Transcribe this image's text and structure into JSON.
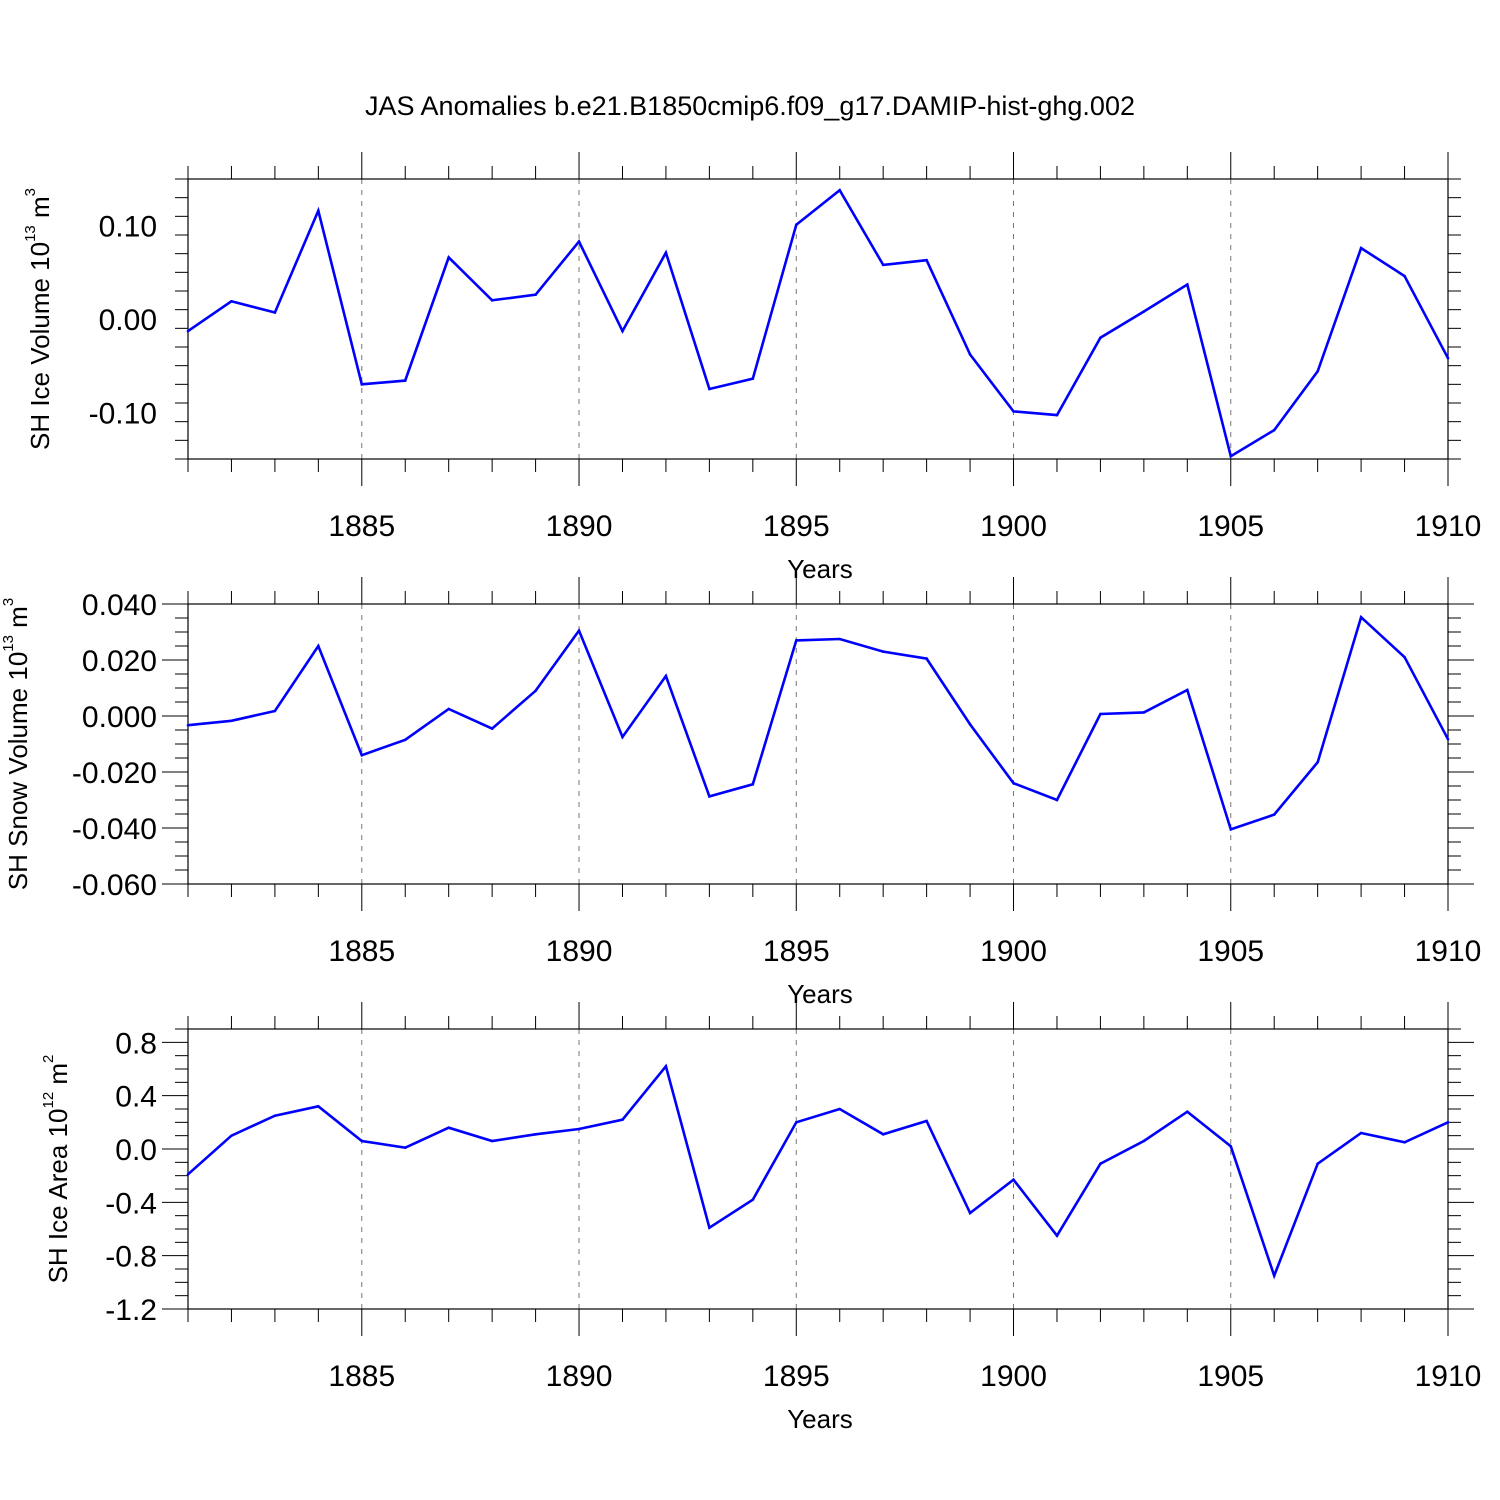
{
  "title": "JAS Anomalies b.e21.B1850cmip6.f09_g17.DAMIP-hist-ghg.002",
  "line_color": "#0000ff",
  "chart_data": [
    {
      "type": "line",
      "ylabel": {
        "text": "SH Ice Volume 10",
        "sup": "13",
        "unit": " m",
        "unit_sup": "3"
      },
      "xlabel": "Years",
      "xlim": [
        1881,
        1910
      ],
      "ylim": [
        -0.15,
        0.15
      ],
      "xticks": [
        1885,
        1890,
        1895,
        1900,
        1905,
        1910
      ],
      "xtick_labels": [
        "1885",
        "1890",
        "1895",
        "1900",
        "1905",
        "1910"
      ],
      "yticks": [
        -0.1,
        0.0,
        0.1
      ],
      "ytick_labels": [
        "-0.10",
        "0.00",
        "0.10"
      ],
      "ytick_minor_step": 0.02,
      "grid": "dashed vertical at major x ticks",
      "x": [
        1881,
        1882,
        1883,
        1884,
        1885,
        1886,
        1887,
        1888,
        1889,
        1890,
        1891,
        1892,
        1893,
        1894,
        1895,
        1896,
        1897,
        1898,
        1899,
        1900,
        1901,
        1902,
        1903,
        1904,
        1905,
        1906,
        1907,
        1908,
        1909,
        1910
      ],
      "y": [
        -0.013,
        0.019,
        0.007,
        0.116,
        -0.07,
        -0.066,
        0.066,
        0.02,
        0.026,
        0.083,
        -0.013,
        0.071,
        -0.075,
        -0.064,
        0.101,
        0.138,
        0.058,
        0.063,
        -0.038,
        -0.099,
        -0.103,
        -0.02,
        0.008,
        0.037,
        -0.147,
        -0.119,
        -0.056,
        0.076,
        0.046,
        -0.042
      ]
    },
    {
      "type": "line",
      "ylabel": {
        "text": "SH Snow Volume 10",
        "sup": "13",
        "unit": " m",
        "unit_sup": "3"
      },
      "xlabel": "Years",
      "xlim": [
        1881,
        1910
      ],
      "ylim": [
        -0.06,
        0.04
      ],
      "xticks": [
        1885,
        1890,
        1895,
        1900,
        1905,
        1910
      ],
      "xtick_labels": [
        "1885",
        "1890",
        "1895",
        "1900",
        "1905",
        "1910"
      ],
      "yticks": [
        -0.06,
        -0.04,
        -0.02,
        0.0,
        0.02,
        0.04
      ],
      "ytick_labels": [
        "-0.060",
        "-0.040",
        "-0.020",
        "0.000",
        "0.020",
        "0.040"
      ],
      "ytick_minor_step": 0.005,
      "grid": "dashed vertical at major x ticks",
      "x": [
        1881,
        1882,
        1883,
        1884,
        1885,
        1886,
        1887,
        1888,
        1889,
        1890,
        1891,
        1892,
        1893,
        1894,
        1895,
        1896,
        1897,
        1898,
        1899,
        1900,
        1901,
        1902,
        1903,
        1904,
        1905,
        1906,
        1907,
        1908,
        1909,
        1910
      ],
      "y": [
        -0.0033,
        -0.0017,
        0.0018,
        0.025,
        -0.014,
        -0.0085,
        0.0025,
        -0.0045,
        0.009,
        0.0305,
        -0.0075,
        0.0143,
        -0.0287,
        -0.0244,
        0.027,
        0.0275,
        0.023,
        0.0205,
        -0.003,
        -0.024,
        -0.03,
        0.0007,
        0.0013,
        0.0093,
        -0.0405,
        -0.0352,
        -0.0165,
        0.0353,
        0.021,
        -0.0083
      ]
    },
    {
      "type": "line",
      "ylabel": {
        "text": "SH Ice Area 10",
        "sup": "12",
        "unit": " m",
        "unit_sup": "2"
      },
      "xlabel": "Years",
      "xlim": [
        1881,
        1910
      ],
      "ylim": [
        -1.2,
        0.9
      ],
      "xticks": [
        1885,
        1890,
        1895,
        1900,
        1905,
        1910
      ],
      "xtick_labels": [
        "1885",
        "1890",
        "1895",
        "1900",
        "1905",
        "1910"
      ],
      "yticks": [
        -1.2,
        -0.8,
        -0.4,
        0.0,
        0.4,
        0.8
      ],
      "ytick_labels": [
        "-1.2",
        "-0.8",
        "-0.4",
        "0.0",
        "0.4",
        "0.8"
      ],
      "ytick_minor_step": 0.1,
      "grid": "dashed vertical at major x ticks",
      "x": [
        1881,
        1882,
        1883,
        1884,
        1885,
        1886,
        1887,
        1888,
        1889,
        1890,
        1891,
        1892,
        1893,
        1894,
        1895,
        1896,
        1897,
        1898,
        1899,
        1900,
        1901,
        1902,
        1903,
        1904,
        1905,
        1906,
        1907,
        1908,
        1909,
        1910
      ],
      "y": [
        -0.19,
        0.1,
        0.25,
        0.32,
        0.06,
        0.01,
        0.16,
        0.06,
        0.11,
        0.15,
        0.22,
        0.62,
        -0.59,
        -0.38,
        0.2,
        0.3,
        0.11,
        0.21,
        -0.48,
        -0.23,
        -0.65,
        -0.11,
        0.06,
        0.28,
        0.02,
        -0.95,
        -0.11,
        0.12,
        0.05,
        0.2
      ]
    }
  ]
}
